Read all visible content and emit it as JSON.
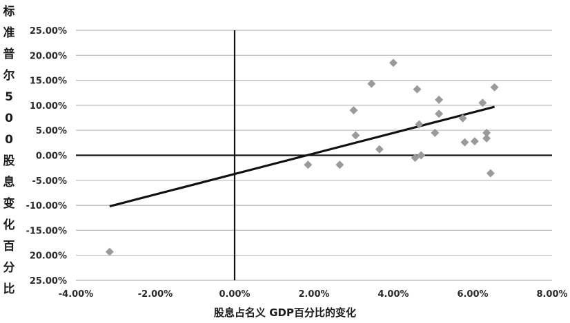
{
  "chart_data": {
    "type": "scatter",
    "title": "",
    "ylabel": "标准普尔500股息变化百分比",
    "xlabel": "股息占名义 GDP百分比的变化",
    "xlim": [
      -4,
      8
    ],
    "ylim": [
      -25,
      25
    ],
    "x_ticks": [
      "-4.00%",
      "-2.00%",
      "0.00%",
      "2.00%",
      "4.00%",
      "6.00%",
      "8.00%"
    ],
    "y_ticks": [
      "25.00%",
      "20.00%",
      "15.00%",
      "10.00%",
      "5.00%",
      "0.00%",
      "-5.00%",
      "-10.00%",
      "-15.00%",
      "20.00%",
      "25.00%"
    ],
    "grid": true,
    "marker_color": "#9a9a9a",
    "line_color": "#111111",
    "points": [
      {
        "x": -3.15,
        "y": -19.3
      },
      {
        "x": 1.85,
        "y": -1.9
      },
      {
        "x": 2.65,
        "y": -1.9
      },
      {
        "x": 3.0,
        "y": 9.0
      },
      {
        "x": 3.05,
        "y": 4.0
      },
      {
        "x": 3.45,
        "y": 14.3
      },
      {
        "x": 3.65,
        "y": 1.2
      },
      {
        "x": 4.0,
        "y": 18.5
      },
      {
        "x": 4.55,
        "y": -0.5
      },
      {
        "x": 4.6,
        "y": 13.2
      },
      {
        "x": 4.65,
        "y": 6.2
      },
      {
        "x": 4.7,
        "y": 0.0
      },
      {
        "x": 5.05,
        "y": 4.5
      },
      {
        "x": 5.15,
        "y": 11.1
      },
      {
        "x": 5.15,
        "y": 8.3
      },
      {
        "x": 5.75,
        "y": 7.4
      },
      {
        "x": 5.8,
        "y": 2.6
      },
      {
        "x": 6.05,
        "y": 2.8
      },
      {
        "x": 6.25,
        "y": 10.5
      },
      {
        "x": 6.35,
        "y": 4.5
      },
      {
        "x": 6.35,
        "y": 3.4
      },
      {
        "x": 6.45,
        "y": -3.6
      },
      {
        "x": 6.55,
        "y": 13.6
      }
    ],
    "trendline": {
      "x": [
        -3.15,
        6.55
      ],
      "y": [
        -10.2,
        9.7
      ]
    }
  }
}
